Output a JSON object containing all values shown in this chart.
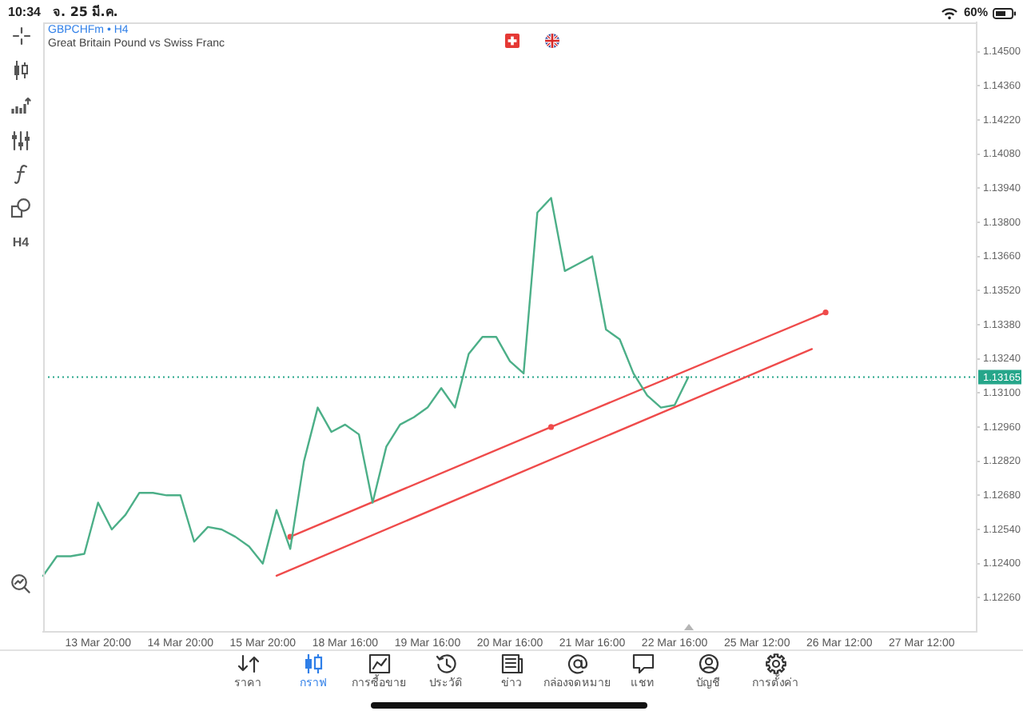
{
  "chart_data": {
    "type": "line",
    "title": "GBPCHFm • H4",
    "subtitle": "Great Britain Pound vs Swiss Franc",
    "categories": [
      null,
      null,
      null,
      null,
      "13 Mar 20:00",
      null,
      null,
      null,
      null,
      null,
      "14 Mar 20:00",
      null,
      null,
      null,
      null,
      null,
      "15 Mar 20:00",
      null,
      null,
      null,
      null,
      null,
      "18 Mar 16:00",
      null,
      null,
      null,
      null,
      null,
      "19 Mar 16:00",
      null,
      null,
      null,
      null,
      null,
      "20 Mar 16:00",
      null,
      null,
      null,
      null,
      null,
      "21 Mar 16:00",
      null,
      null,
      null,
      null,
      null,
      "22 Mar 16:00",
      null,
      null,
      null,
      null,
      null,
      "25 Mar 12:00",
      null,
      null,
      null,
      null,
      null,
      "26 Mar 12:00",
      null,
      null,
      null,
      null,
      null,
      "27 Mar 12:00",
      null,
      null,
      null,
      null
    ],
    "series": [
      {
        "color": "#4caf88",
        "values": [
          1.1235,
          1.1243,
          1.1243,
          1.1244,
          1.1265,
          1.1254,
          1.126,
          1.1269,
          1.1269,
          1.1268,
          1.1268,
          1.1249,
          1.1255,
          1.1254,
          1.1251,
          1.1247,
          1.124,
          1.1262,
          1.1246,
          1.1282,
          1.1304,
          1.1294,
          1.1297,
          1.1293,
          1.1265,
          1.1288,
          1.1297,
          1.13,
          1.1304,
          1.1312,
          1.1304,
          1.1326,
          1.1333,
          1.1333,
          1.1323,
          1.1318,
          1.1384,
          1.139,
          1.136,
          1.1363,
          1.1366,
          1.1336,
          1.1332,
          1.1318,
          1.1309,
          1.1304,
          1.1305,
          1.13165,
          null,
          null,
          null,
          null,
          null,
          null,
          null,
          null,
          null,
          null,
          null,
          null,
          null,
          null,
          null,
          null,
          null,
          null,
          null,
          null,
          null
        ]
      },
      {
        "color": "#ef4b4b",
        "marker": "circle",
        "values": [
          null,
          null,
          null,
          null,
          null,
          null,
          null,
          null,
          null,
          null,
          null,
          null,
          null,
          null,
          null,
          null,
          null,
          null,
          1.1251,
          null,
          null,
          null,
          null,
          null,
          null,
          null,
          null,
          null,
          null,
          null,
          null,
          null,
          null,
          null,
          null,
          null,
          null,
          1.1296,
          null,
          null,
          null,
          null,
          null,
          null,
          null,
          null,
          null,
          null,
          null,
          null,
          null,
          null,
          null,
          null,
          null,
          null,
          null,
          1.1343,
          null,
          null,
          null,
          null,
          null,
          null,
          null,
          null,
          null,
          null,
          null
        ]
      },
      {
        "color": "#ef4b4b",
        "values": [
          null,
          null,
          null,
          null,
          null,
          null,
          null,
          null,
          null,
          null,
          null,
          null,
          null,
          null,
          null,
          null,
          null,
          1.1235,
          null,
          null,
          null,
          null,
          null,
          null,
          null,
          null,
          null,
          null,
          null,
          null,
          null,
          null,
          null,
          null,
          null,
          null,
          null,
          null,
          null,
          null,
          null,
          null,
          null,
          null,
          null,
          null,
          null,
          null,
          null,
          null,
          null,
          null,
          null,
          null,
          null,
          null,
          1.1328,
          null,
          null,
          null,
          null,
          null,
          null,
          null,
          null,
          null,
          null,
          null,
          null
        ]
      }
    ],
    "ylim": [
      1.1212,
      1.1462
    ],
    "yticks": [
      {
        "value": 1.1226,
        "label": "1.12260"
      },
      {
        "value": 1.124,
        "label": "1.12400"
      },
      {
        "value": 1.1254,
        "label": "1.12540"
      },
      {
        "value": 1.1268,
        "label": "1.12680"
      },
      {
        "value": 1.1282,
        "label": "1.12820"
      },
      {
        "value": 1.1296,
        "label": "1.12960"
      },
      {
        "value": 1.131,
        "label": "1.13100"
      },
      {
        "value": 1.1324,
        "label": "1.13240"
      },
      {
        "value": 1.1338,
        "label": "1.13380"
      },
      {
        "value": 1.1352,
        "label": "1.13520"
      },
      {
        "value": 1.1366,
        "label": "1.13660"
      },
      {
        "value": 1.138,
        "label": "1.13800"
      },
      {
        "value": 1.1394,
        "label": "1.13940"
      },
      {
        "value": 1.1408,
        "label": "1.14080"
      },
      {
        "value": 1.1422,
        "label": "1.14220"
      },
      {
        "value": 1.1436,
        "label": "1.14360"
      },
      {
        "value": 1.145,
        "label": "1.14500"
      }
    ],
    "ref_lines": [
      {
        "axis": "y",
        "value": 1.13165,
        "label": "1.13165",
        "color": "#26a68a",
        "line_style": "dotted"
      }
    ],
    "annotations": [
      "10:34",
      "จ. 25 มี.ค.",
      "60%",
      "H4",
      "ราคา",
      "กราฟ",
      "การซื้อขาย",
      "ประวัติ",
      "ข่าว",
      "กล่องจดหมาย",
      "แชท",
      "บัญชี",
      "การตั้งค่า"
    ]
  }
}
